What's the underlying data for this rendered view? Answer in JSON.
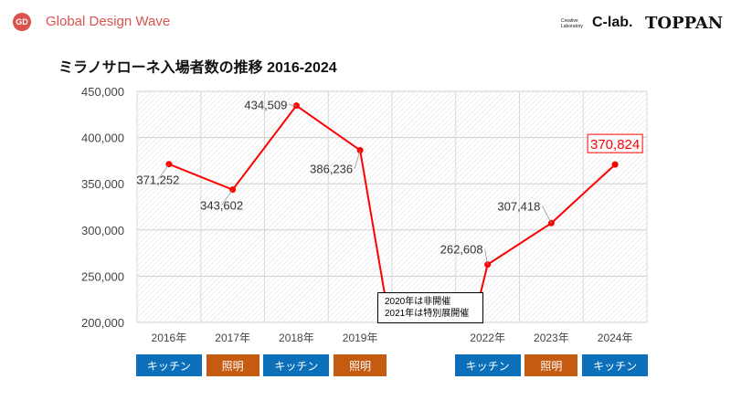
{
  "header": {
    "logo_text": "GD",
    "brand": "Global Design Wave",
    "clab_small": [
      "Creative",
      "Laboratory"
    ],
    "clab": "C-lab.",
    "toppan": "TOPPAN"
  },
  "colors": {
    "line": "#ff0000",
    "kitchen": "#0b70b9",
    "lighting": "#c55a11"
  },
  "chart_data": {
    "type": "line",
    "title": "ミラノサローネ入場者数の推移 2016-2024",
    "categories": [
      "2016年",
      "2017年",
      "2018年",
      "2019年",
      "",
      "2022年",
      "2023年",
      "2024年"
    ],
    "values": [
      371252,
      343602,
      434509,
      386236,
      null,
      262608,
      307418,
      370824
    ],
    "labels": [
      "371,252",
      "343,602",
      "434,509",
      "386,236",
      "",
      "262,608",
      "307,418",
      "370,824"
    ],
    "ylim": [
      200000,
      450000
    ],
    "yticks": [
      200000,
      250000,
      300000,
      350000,
      400000,
      450000
    ],
    "ytick_labels": [
      "200,000",
      "250,000",
      "300,000",
      "350,000",
      "400,000",
      "450,000"
    ],
    "grid": true,
    "highlight_label": "370,824",
    "annotation": [
      "2020年は非開催",
      "2021年は特別展開催"
    ]
  },
  "themes": [
    {
      "label": "キッチン",
      "type": "kitchen"
    },
    {
      "label": "照明",
      "type": "lighting"
    },
    {
      "label": "キッチン",
      "type": "kitchen"
    },
    {
      "label": "照明",
      "type": "lighting"
    },
    null,
    {
      "label": "キッチン",
      "type": "kitchen"
    },
    {
      "label": "照明",
      "type": "lighting"
    },
    {
      "label": "キッチン",
      "type": "kitchen"
    }
  ]
}
